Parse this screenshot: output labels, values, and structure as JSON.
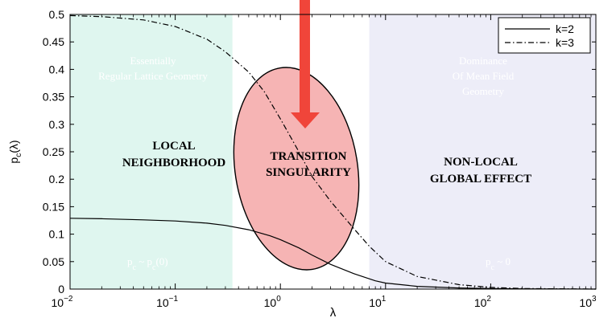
{
  "chart_data": {
    "type": "line",
    "title": "",
    "xlabel": "λ",
    "ylabel": "p_c(λ)",
    "xscale": "log",
    "xlim": [
      0.01,
      1000
    ],
    "ylim": [
      0,
      0.5
    ],
    "x_ticks": [
      {
        "base": "10",
        "exp": "−2",
        "value": 0.01
      },
      {
        "base": "10",
        "exp": "−1",
        "value": 0.1
      },
      {
        "base": "10",
        "exp": "0",
        "value": 1
      },
      {
        "base": "10",
        "exp": "1",
        "value": 10
      },
      {
        "base": "10",
        "exp": "2",
        "value": 100
      },
      {
        "base": "10",
        "exp": "3",
        "value": 1000
      }
    ],
    "y_ticks": [
      "0",
      "0.05",
      "0.1",
      "0.15",
      "0.2",
      "0.25",
      "0.3",
      "0.35",
      "0.4",
      "0.45",
      "0.5"
    ],
    "legend_position": "top-right",
    "series": [
      {
        "name": "k=2",
        "style": "solid",
        "color": "#000000",
        "x": [
          0.01,
          0.02,
          0.05,
          0.1,
          0.2,
          0.3,
          0.5,
          0.8,
          1,
          1.5,
          2,
          3,
          5,
          8,
          10,
          20,
          50,
          100,
          200,
          1000
        ],
        "y": [
          0.129,
          0.128,
          0.126,
          0.124,
          0.12,
          0.116,
          0.108,
          0.097,
          0.09,
          0.075,
          0.062,
          0.045,
          0.028,
          0.015,
          0.011,
          0.005,
          0.002,
          0.001,
          0.0005,
          0
        ]
      },
      {
        "name": "k=3",
        "style": "dashdot",
        "color": "#000000",
        "x": [
          0.01,
          0.02,
          0.05,
          0.1,
          0.2,
          0.3,
          0.5,
          0.7,
          1,
          1.5,
          2,
          3,
          5,
          7,
          10,
          20,
          50,
          100,
          200,
          1000
        ],
        "y": [
          0.498,
          0.496,
          0.49,
          0.478,
          0.455,
          0.432,
          0.395,
          0.36,
          0.31,
          0.25,
          0.205,
          0.16,
          0.11,
          0.078,
          0.05,
          0.023,
          0.008,
          0.003,
          0.001,
          0
        ]
      }
    ],
    "regions": [
      {
        "x_range": [
          0.01,
          0.35
        ],
        "color": "#dff6ef",
        "title": "LOCAL\nNEIGHBORHOOD",
        "subtitle": "Essentially\nRegular Lattice Geometry",
        "formula": "p_c ~ p_c(0)"
      },
      {
        "x_range": [
          7,
          1000
        ],
        "color": "#ededf8",
        "title": "NON-LOCAL\nGLOBAL EFFECT",
        "subtitle": "Dominance\nOf Mean Field\nGeometry",
        "formula": "p_c ~ 0"
      }
    ],
    "annotations": [
      {
        "kind": "ellipse",
        "color": "#f4a7a7",
        "label": "TRANSITION\nSINGULARITY"
      },
      {
        "kind": "arrow",
        "color": "#f0453a"
      }
    ]
  }
}
